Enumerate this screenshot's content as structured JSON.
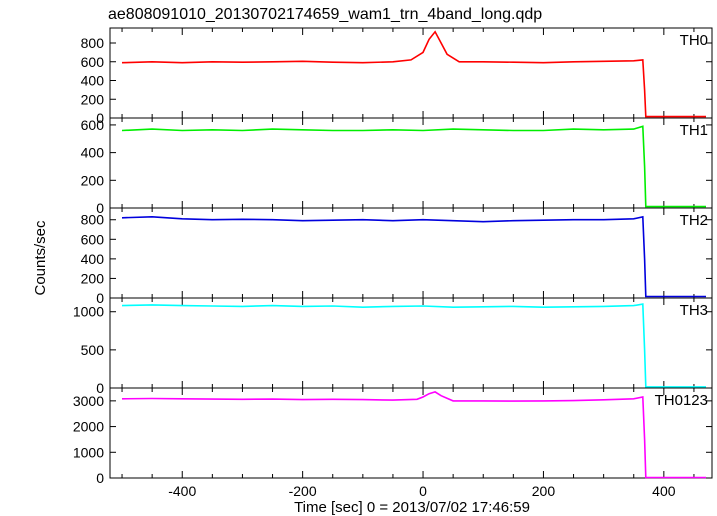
{
  "chart_data": {
    "type": "line",
    "title": "ae808091010_20130702174659_wam1_trn_4band_long.qdp",
    "xlabel": "Time [sec] 0 = 2013/07/02 17:46:59",
    "ylabel": "Counts/sec",
    "xlim": [
      -520,
      480
    ],
    "x_ticks": [
      -400,
      -200,
      0,
      200,
      400
    ],
    "grid": false,
    "panels": [
      {
        "name": "TH0",
        "color": "#ff0000",
        "ylim": [
          0,
          960
        ],
        "y_ticks": [
          0,
          200,
          400,
          600,
          800
        ],
        "series": [
          {
            "x": [
              -500,
              -450,
              -400,
              -350,
              -300,
              -250,
              -200,
              -150,
              -100,
              -50,
              -20,
              0,
              10,
              20,
              30,
              40,
              60,
              100,
              150,
              200,
              250,
              300,
              350,
              365,
              368,
              370,
              420,
              470
            ],
            "y": [
              590,
              600,
              590,
              600,
              595,
              600,
              605,
              595,
              590,
              600,
              620,
              700,
              840,
              920,
              800,
              680,
              600,
              600,
              595,
              590,
              600,
              605,
              610,
              620,
              300,
              15,
              15,
              15
            ]
          }
        ]
      },
      {
        "name": "TH1",
        "color": "#00ee00",
        "ylim": [
          0,
          650
        ],
        "y_ticks": [
          0,
          200,
          400,
          600
        ],
        "series": [
          {
            "x": [
              -500,
              -450,
              -400,
              -350,
              -300,
              -250,
              -200,
              -150,
              -100,
              -50,
              0,
              50,
              100,
              150,
              200,
              250,
              300,
              350,
              365,
              368,
              370,
              420,
              470
            ],
            "y": [
              560,
              570,
              560,
              565,
              560,
              570,
              565,
              560,
              560,
              565,
              560,
              570,
              565,
              560,
              560,
              570,
              565,
              570,
              590,
              300,
              10,
              10,
              10
            ]
          }
        ]
      },
      {
        "name": "TH2",
        "color": "#0000dd",
        "ylim": [
          0,
          920
        ],
        "y_ticks": [
          0,
          200,
          400,
          600,
          800
        ],
        "series": [
          {
            "x": [
              -500,
              -450,
              -400,
              -350,
              -300,
              -250,
              -200,
              -150,
              -100,
              -50,
              0,
              50,
              100,
              150,
              200,
              250,
              300,
              350,
              365,
              368,
              370,
              420,
              470
            ],
            "y": [
              820,
              830,
              810,
              800,
              805,
              800,
              790,
              795,
              800,
              790,
              800,
              790,
              780,
              790,
              795,
              800,
              800,
              810,
              830,
              400,
              15,
              15,
              15
            ]
          }
        ]
      },
      {
        "name": "TH3",
        "color": "#00ffff",
        "ylim": [
          0,
          1180
        ],
        "y_ticks": [
          0,
          500,
          1000
        ],
        "series": [
          {
            "x": [
              -500,
              -450,
              -400,
              -350,
              -300,
              -250,
              -200,
              -150,
              -100,
              -50,
              0,
              50,
              100,
              150,
              200,
              250,
              300,
              350,
              365,
              368,
              370,
              420,
              470
            ],
            "y": [
              1080,
              1090,
              1080,
              1075,
              1070,
              1080,
              1070,
              1075,
              1060,
              1070,
              1075,
              1060,
              1065,
              1070,
              1060,
              1065,
              1070,
              1080,
              1100,
              500,
              15,
              15,
              15
            ]
          }
        ]
      },
      {
        "name": "TH0123",
        "color": "#ff00ff",
        "ylim": [
          0,
          3500
        ],
        "y_ticks": [
          0,
          1000,
          2000,
          3000
        ],
        "series": [
          {
            "x": [
              -500,
              -450,
              -400,
              -350,
              -300,
              -250,
              -200,
              -150,
              -100,
              -50,
              -10,
              0,
              10,
              20,
              30,
              50,
              100,
              150,
              200,
              250,
              300,
              350,
              365,
              368,
              370,
              420,
              470
            ],
            "y": [
              3080,
              3090,
              3080,
              3070,
              3060,
              3070,
              3050,
              3060,
              3050,
              3030,
              3060,
              3150,
              3280,
              3350,
              3200,
              3000,
              3000,
              2990,
              3000,
              3010,
              3040,
              3080,
              3150,
              1500,
              20,
              20,
              20
            ]
          }
        ]
      }
    ]
  }
}
